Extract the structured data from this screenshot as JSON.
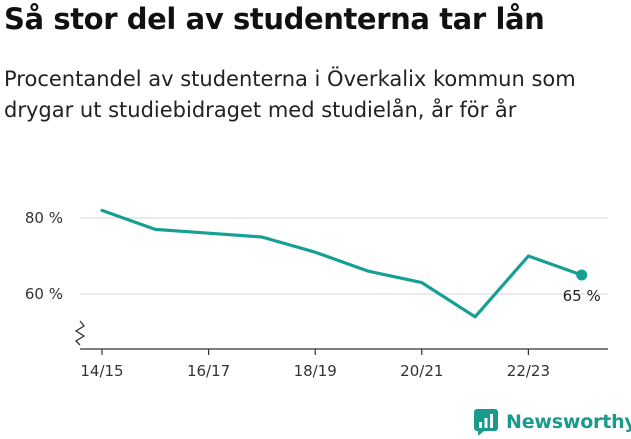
{
  "title": "Så stor del av studenterna tar lån",
  "subtitle": "Procentandel av studenterna i Överkalix kommun som drygar ut studiebidraget med studielån, år för år",
  "brand": {
    "name": "Newsworthy",
    "icon": "newsworthy-logo-icon",
    "color": "#1a9a8c"
  },
  "chart_data": {
    "type": "line",
    "x": [
      "14/15",
      "15/16",
      "16/17",
      "17/18",
      "18/19",
      "19/20",
      "20/21",
      "21/22",
      "22/23",
      "23/24"
    ],
    "x_tick_labels": [
      "14/15",
      "16/17",
      "18/19",
      "20/21",
      "22/23"
    ],
    "y_tick_labels": [
      "80 %",
      "60 %"
    ],
    "series": [
      {
        "values": [
          82,
          77,
          76,
          75,
          71,
          66,
          63,
          54,
          70,
          65
        ],
        "color": "#16a094"
      }
    ],
    "last_value_label": "65 %",
    "y_axis_break": true,
    "ylim": [
      45,
      82
    ],
    "grid": true
  }
}
